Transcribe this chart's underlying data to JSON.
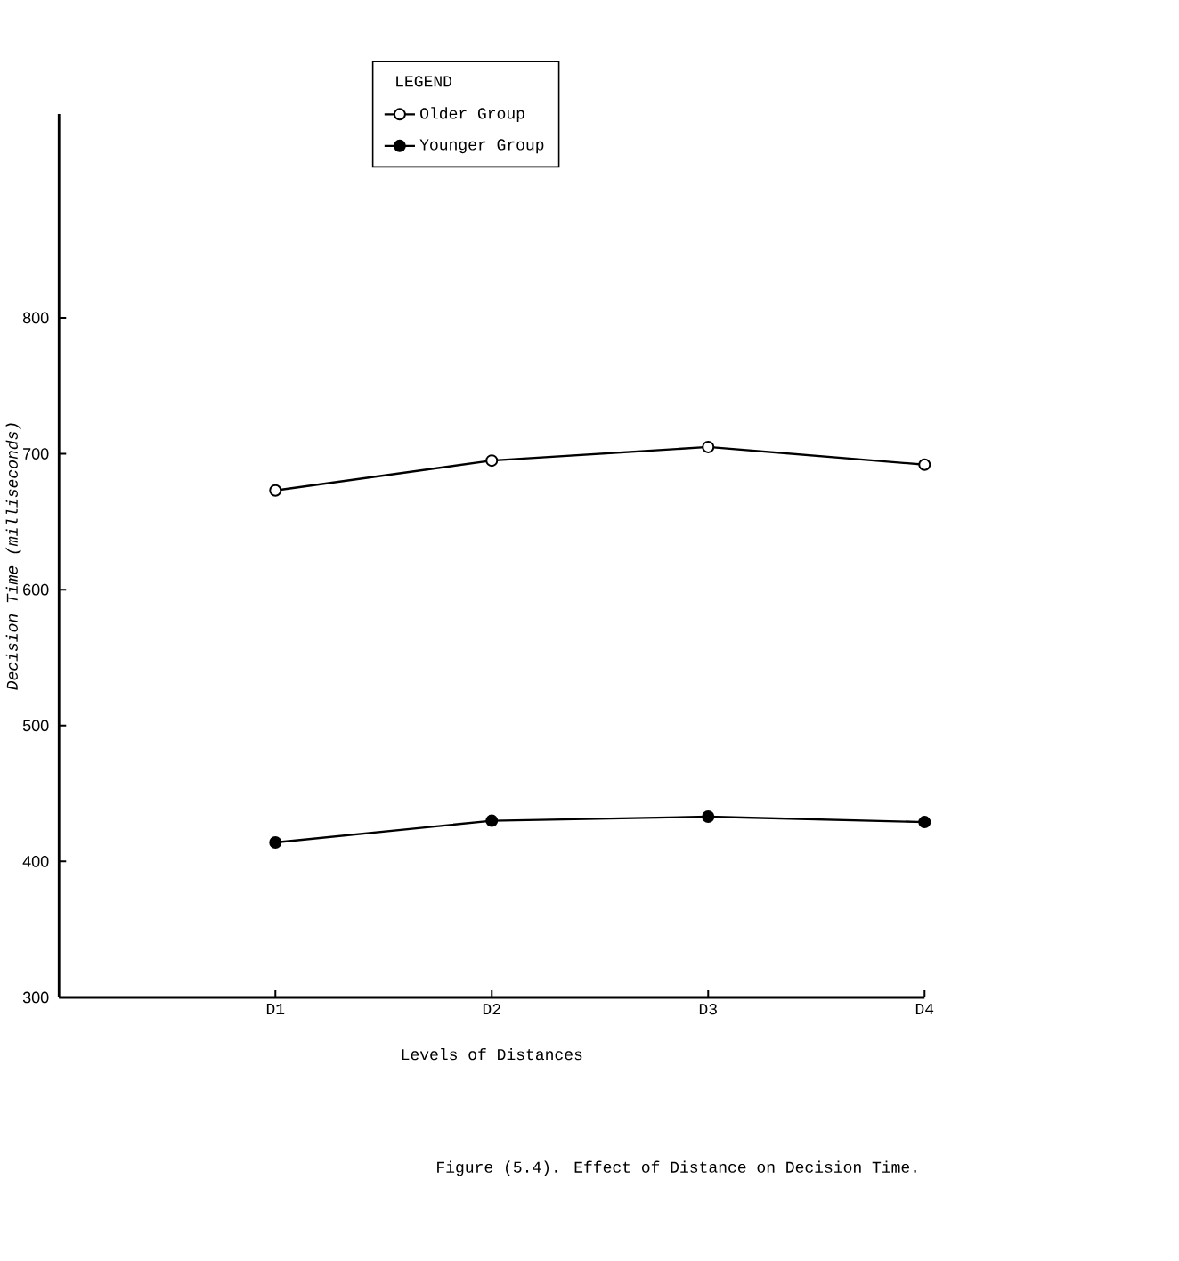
{
  "chart_data": {
    "type": "line",
    "categories": [
      "D1",
      "D2",
      "D3",
      "D4"
    ],
    "series": [
      {
        "name": "Older Group",
        "color": "#000000",
        "values": [
          673,
          695,
          705,
          692
        ]
      },
      {
        "name": "Younger Group",
        "color": "#000000",
        "values": [
          414,
          430,
          433,
          429
        ]
      }
    ],
    "xlabel": "Levels of Distances",
    "ylabel": "Decision Time (milliseconds)",
    "legend_title": "LEGEND",
    "annotations": [
      "Figure (5.4).  Effect of Distance on Decision Time."
    ],
    "ylim": [
      300,
      950
    ],
    "yticks": [
      300,
      400,
      500,
      600,
      700,
      800
    ],
    "legend": "top",
    "grid": false,
    "marker": "circle",
    "line_style": "solid"
  }
}
